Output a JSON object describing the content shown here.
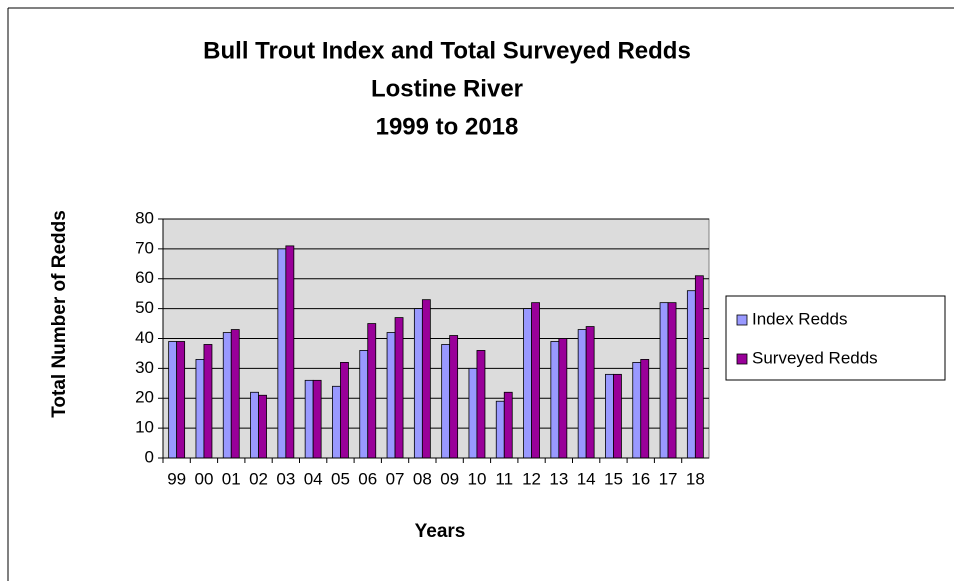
{
  "chart_data": {
    "type": "bar",
    "title": [
      "Bull Trout Index and Total Surveyed Redds",
      "Lostine River",
      "1999 to 2018"
    ],
    "x_label": "Years",
    "y_label": "Total Number of Redds",
    "categories": [
      "99",
      "00",
      "01",
      "02",
      "03",
      "04",
      "05",
      "06",
      "07",
      "08",
      "09",
      "10",
      "11",
      "12",
      "13",
      "14",
      "15",
      "16",
      "17",
      "18"
    ],
    "series": [
      {
        "name": "Index Redds",
        "color": "#9999ff",
        "values": [
          39,
          33,
          42,
          22,
          70,
          26,
          24,
          36,
          42,
          50,
          38,
          30,
          19,
          50,
          39,
          43,
          28,
          32,
          52,
          56
        ]
      },
      {
        "name": "Surveyed Redds",
        "color": "#990099",
        "values": [
          39,
          38,
          43,
          21,
          71,
          26,
          32,
          45,
          47,
          53,
          41,
          36,
          22,
          52,
          40,
          44,
          28,
          33,
          52,
          61
        ]
      }
    ],
    "ylim": [
      0,
      80
    ],
    "yticks": [
      0,
      10,
      20,
      30,
      40,
      50,
      60,
      70,
      80
    ],
    "legend": "right"
  }
}
